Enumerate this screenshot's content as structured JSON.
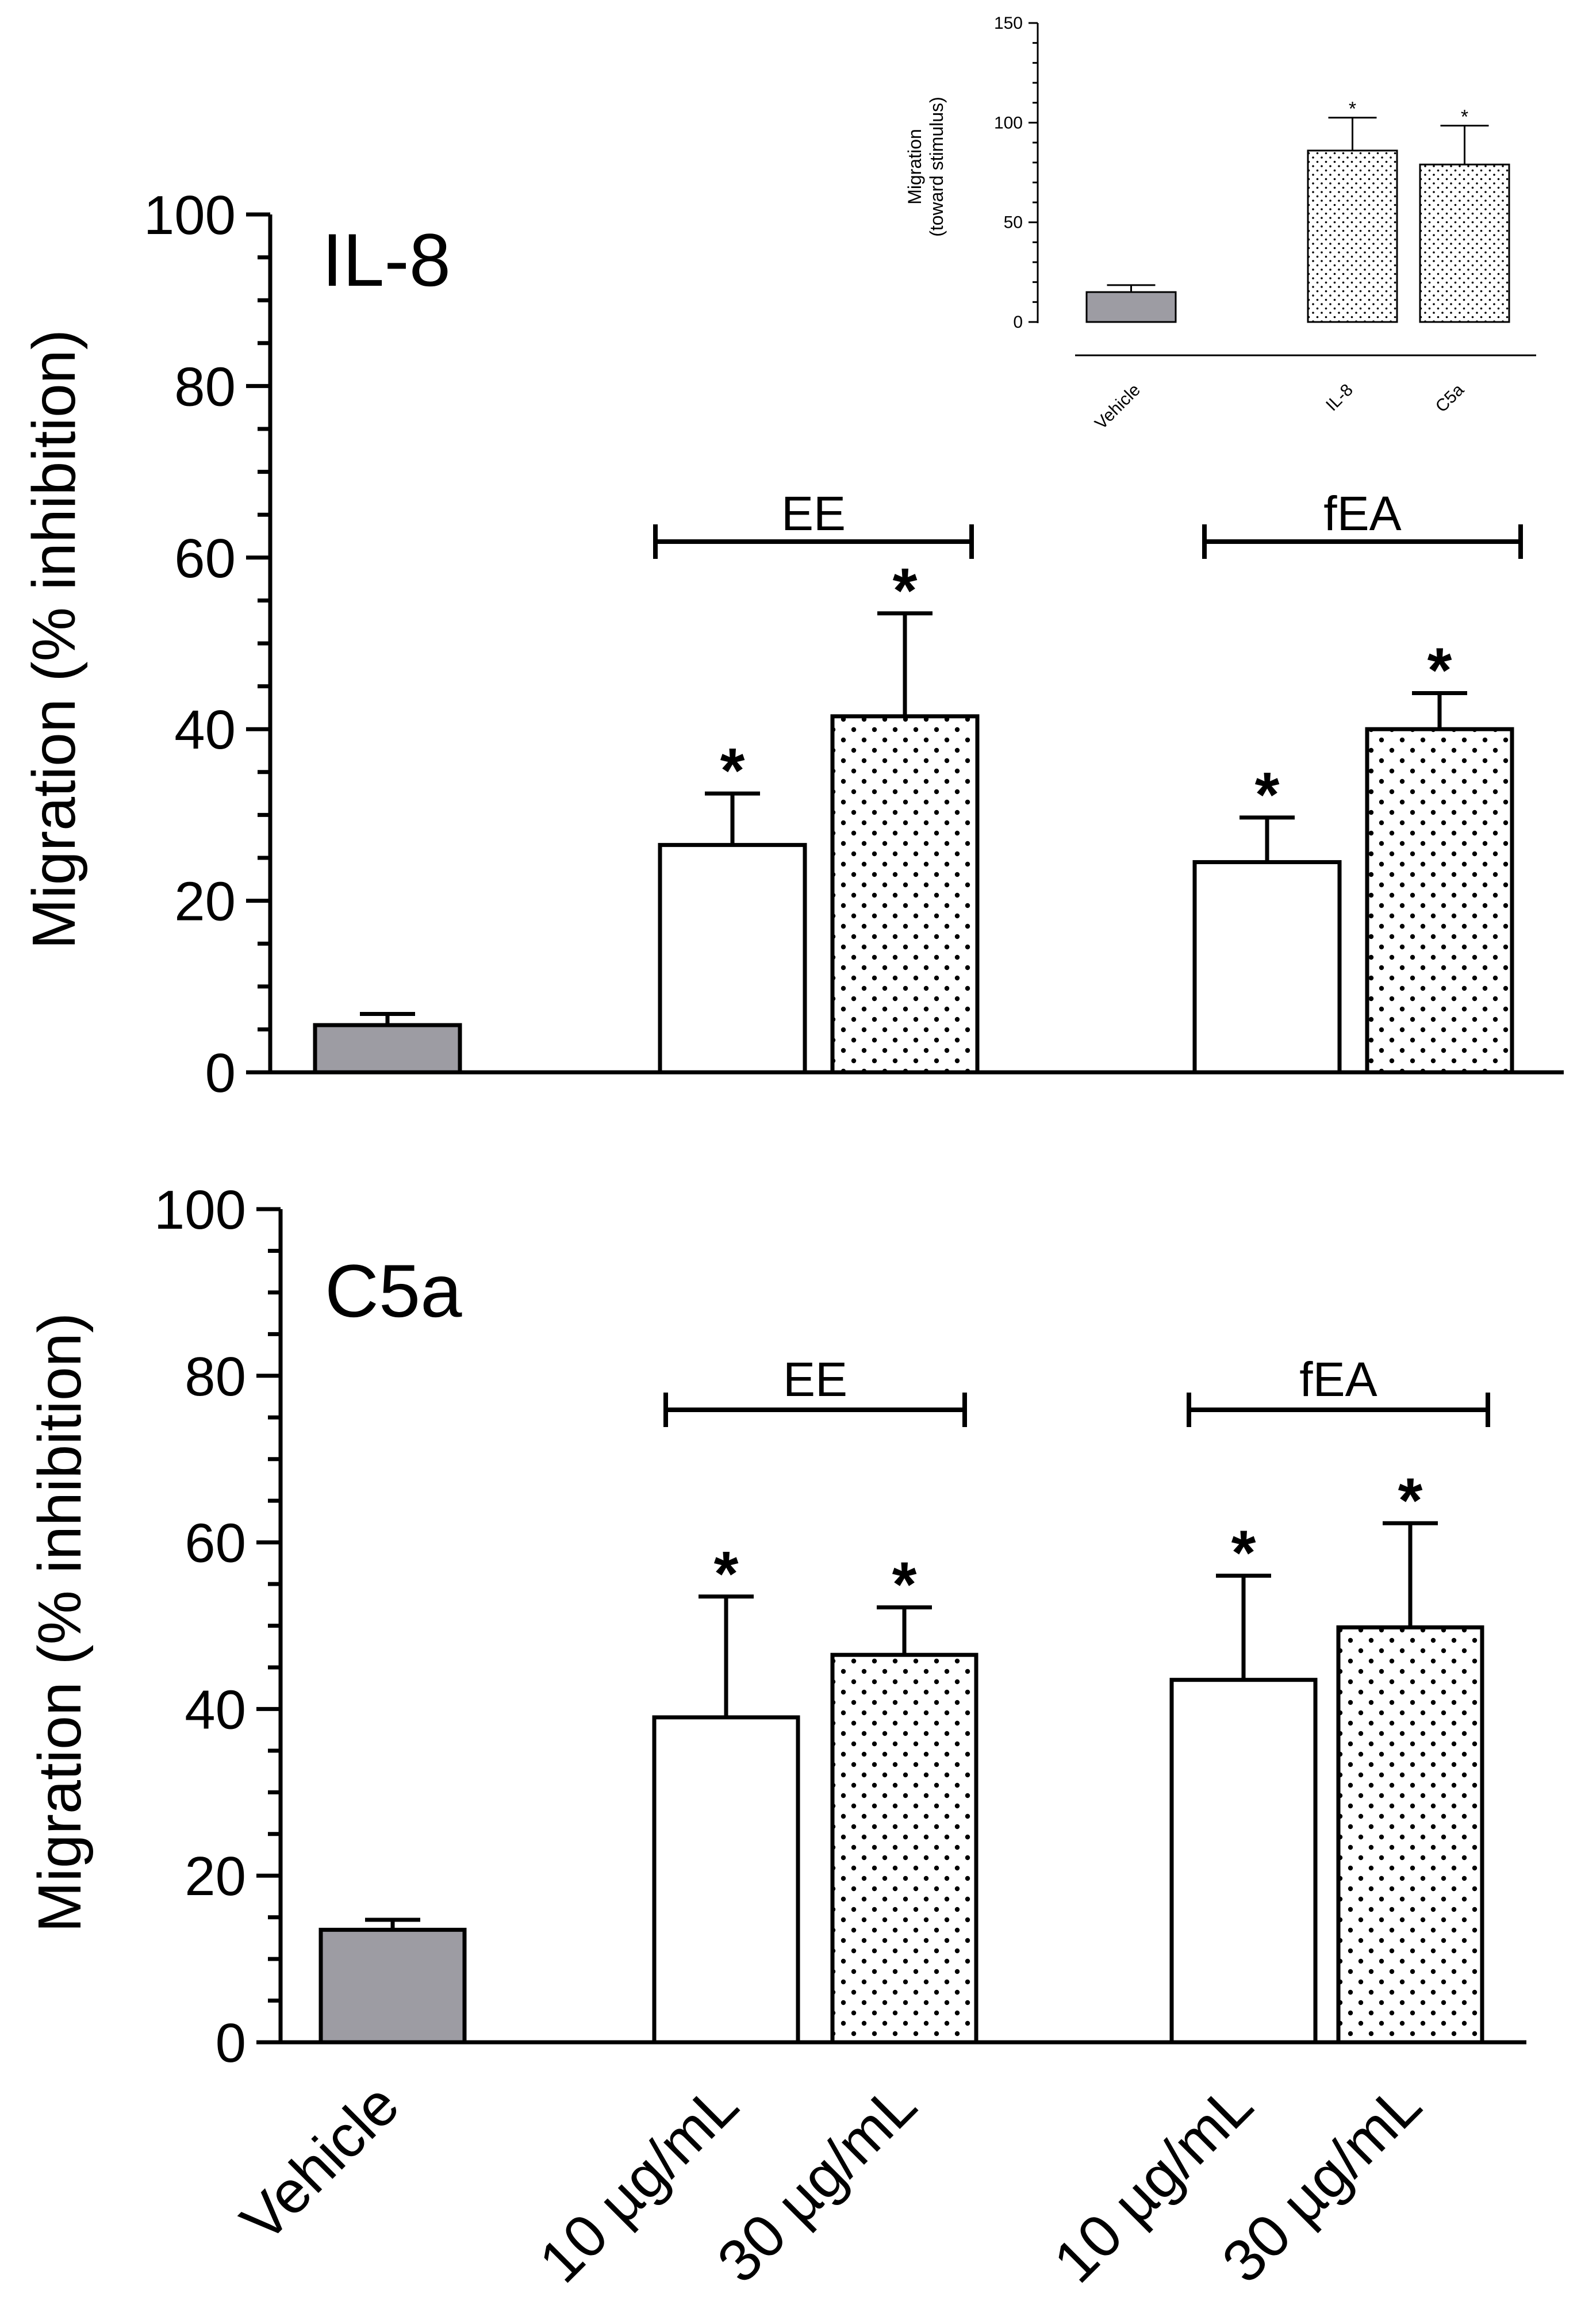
{
  "chart_data": [
    {
      "type": "bar",
      "panel": "IL-8",
      "title": "IL-8",
      "ylabel": "Migration (% inhibition)",
      "ylim": [
        0,
        100
      ],
      "yticks": [
        0,
        20,
        40,
        60,
        80,
        100
      ],
      "categories": [
        "Vehicle",
        "10 µg/mL",
        "30 µg/mL",
        "10 µg/mL",
        "30 µg/mL"
      ],
      "groups": [
        {
          "label": "EE",
          "members": [
            1,
            2
          ]
        },
        {
          "label": "fEA",
          "members": [
            3,
            4
          ]
        }
      ],
      "values": [
        5.5,
        26.5,
        41.5,
        24.5,
        40.0
      ],
      "errors": [
        1.3,
        6.0,
        12.0,
        5.2,
        4.2
      ],
      "significance": [
        "",
        "*",
        "*",
        "*",
        "*"
      ],
      "fills": [
        "gray",
        "white",
        "dotted",
        "white",
        "dotted"
      ]
    },
    {
      "type": "bar",
      "panel": "C5a",
      "title": "C5a",
      "ylabel": "Migration (% inhibition)",
      "ylim": [
        0,
        100
      ],
      "yticks": [
        0,
        20,
        40,
        60,
        80,
        100
      ],
      "categories": [
        "Vehicle",
        "10 µg/mL",
        "30 µg/mL",
        "10 µg/mL",
        "30 µg/mL"
      ],
      "groups": [
        {
          "label": "EE",
          "members": [
            1,
            2
          ]
        },
        {
          "label": "fEA",
          "members": [
            3,
            4
          ]
        }
      ],
      "values": [
        13.5,
        39.0,
        46.5,
        43.5,
        49.8
      ],
      "errors": [
        1.2,
        14.5,
        5.7,
        12.5,
        12.5
      ],
      "significance": [
        "",
        "*",
        "*",
        "*",
        "*"
      ],
      "fills": [
        "gray",
        "white",
        "dotted",
        "white",
        "dotted"
      ]
    },
    {
      "type": "bar",
      "panel": "inset",
      "title": "",
      "ylabel": "Migration\n(toward stimulus)",
      "ylabel_lines": [
        "Migration",
        "(toward stimulus)"
      ],
      "ylim": [
        0,
        150
      ],
      "yticks": [
        0,
        50,
        100,
        150
      ],
      "categories": [
        "Vehicle",
        "IL-8",
        "C5a"
      ],
      "values": [
        15,
        86,
        79
      ],
      "errors": [
        3.5,
        16.5,
        19.5
      ],
      "significance": [
        "",
        "*",
        "*"
      ],
      "fills": [
        "gray",
        "dotted",
        "dotted"
      ]
    }
  ],
  "colors": {
    "vehicle_fill": "#9d9ca3",
    "white_fill": "#ffffff",
    "dot_color": "#000000",
    "axis": "#000000"
  }
}
